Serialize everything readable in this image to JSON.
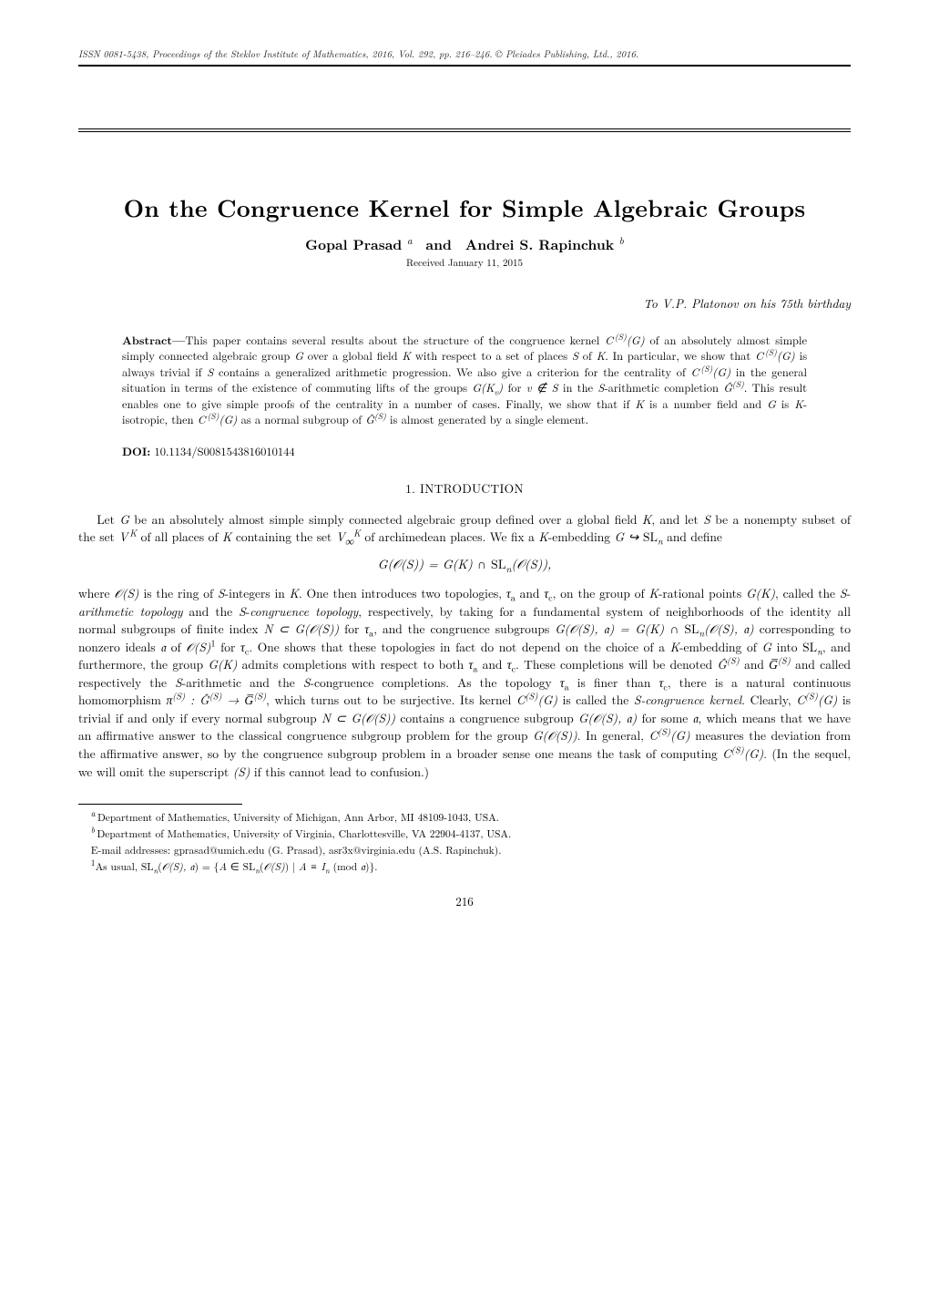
{
  "journal_header": "ISSN 0081-5438, Proceedings of the Steklov Institute of Mathematics, 2016, Vol. 292, pp. 216–246. © Pleiades Publishing, Ltd., 2016.",
  "title": "On the Congruence Kernel for Simple Algebraic Groups",
  "authors_html": "Gopal Prasad<sup>&nbsp;a</sup>&nbsp; and&nbsp; Andrei S. Rapinchuk<sup>&nbsp;b</sup>",
  "received": "Received January 11, 2015",
  "dedication": "To V.P. Platonov on his 75th birthday",
  "abstract_label": "Abstract—",
  "abstract_html": "This paper contains several results about the structure of the congruence kernel <span class=\"math\">C<sup>&thinsp;(S)</sup>(G)</span> of an absolutely almost simple simply connected algebraic group <span class=\"math\">G</span> over a global field <span class=\"math\">K</span> with respect to a set of places <span class=\"math\">S</span> of <span class=\"math\">K</span>. In particular, we show that <span class=\"math\">C<sup>&thinsp;(S)</sup>(G)</span> is always trivial if <span class=\"math\">S</span> contains a generalized arithmetic progression. We also give a criterion for the centrality of <span class=\"math\">C<sup>&thinsp;(S)</sup>(G)</span> in the general situation in terms of the existence of commuting lifts of the groups <span class=\"math\">G(K<sub>v</sub>)</span> for <span class=\"math\">v &notin; S</span> in the <span class=\"math\">S</span>-arithmetic completion <span class=\"math\">Ĝ<sup>(S)</sup></span>. This result enables one to give simple proofs of the centrality in a number of cases. Finally, we show that if <span class=\"math\">K</span> is a number field and <span class=\"math\">G</span> is <span class=\"math\">K</span>-isotropic, then <span class=\"math\">C<sup>&thinsp;(S)</sup>(G)</span> as a normal subgroup of <span class=\"math\">Ĝ<sup>(S)</sup></span> is almost generated by a single element.",
  "doi_label": "DOI:",
  "doi": "10.1134/S0081543816010144",
  "section1": "1. INTRODUCTION",
  "para1_html": "Let <span class=\"math\">G</span> be an absolutely almost simple simply connected algebraic group defined over a global field <span class=\"math\">K</span>, and let <span class=\"math\">S</span> be a nonempty subset of the set <span class=\"math\">V<sup>&thinsp;K</sup></span> of all places of <span class=\"math\">K</span> containing the set <span class=\"math\">V<sub>∞</sub><sup>K</sup></span> of archimedean places. We fix a <span class=\"math\">K</span>-embedding <span class=\"math\">G ↪ <span class=\"rm\">SL</span><sub>n</sub></span> and define",
  "display1_html": "<span class=\"math\">G(𝒪(S)) = G(K) ∩ <span class=\"rm\">SL</span><sub>n</sub>(𝒪(S)),</span>",
  "para2_html": "where <span class=\"math\">𝒪(S)</span> is the ring of <span class=\"math\">S</span>-integers in <span class=\"math\">K</span>. One then introduces two topologies, <span class=\"math\">τ</span><sub>a</sub> and <span class=\"math\">τ</span><sub>c</sub>, on the group of <span class=\"math\">K</span>-rational points <span class=\"math\">G(K)</span>, called the <span class=\"math\">S</span>-<span class=\"math\">arithmetic topology</span> and the <span class=\"math\">S</span>-<span class=\"math\">congruence topology</span>, respectively, by taking for a fundamental system of neighborhoods of the identity all normal subgroups of finite index <span class=\"math\">N ⊂ G(𝒪(S))</span> for <span class=\"math\">τ</span><sub>a</sub>, and the congruence subgroups <span class=\"math\">G(𝒪(S), 𝔞) = G(K) ∩ <span class=\"rm\">SL</span><sub>n</sub>(𝒪(S), 𝔞)</span> corresponding to nonzero ideals <span class=\"math\">𝔞</span> of <span class=\"math\">𝒪(S)</span><sup>1</sup> for <span class=\"math\">τ</span><sub>c</sub>. One shows that these topologies in fact do not depend on the choice of a <span class=\"math\">K</span>-embedding of <span class=\"math\">G</span> into <span class=\"rm\">SL</span><sub><span class=\"math\">n</span></sub>, and furthermore, the group <span class=\"math\">G(K)</span> admits completions with respect to both <span class=\"math\">τ</span><sub>a</sub> and <span class=\"math\">τ</span><sub>c</sub>. These completions will be denoted <span class=\"math\">Ĝ<sup>(S)</sup></span> and <span class=\"math\">G̅<sup>(S)</sup></span> and called respectively the <span class=\"math\">S</span>-arithmetic and the <span class=\"math\">S</span>-congruence completions. As the topology <span class=\"math\">τ</span><sub>a</sub> is finer than <span class=\"math\">τ</span><sub>c</sub>, there is a natural continuous homomorphism <span class=\"math\">π<sup>(S)</sup> : Ĝ<sup>(S)</sup> → G̅<sup>(S)</sup></span>, which turns out to be surjective. Its kernel <span class=\"math\">C<sup>(S)</sup>(G)</span> is called the <span class=\"math\">S-congruence kernel</span>. Clearly, <span class=\"math\">C<sup>(S)</sup>(G)</span> is trivial if and only if every normal subgroup <span class=\"math\">N ⊂ G(𝒪(S))</span> contains a congruence subgroup <span class=\"math\">G(𝒪(S), 𝔞)</span> for some <span class=\"math\">𝔞</span>, which means that we have an affirmative answer to the classical congruence subgroup problem for the group <span class=\"math\">G(𝒪(S))</span>. In general, <span class=\"math\">C<sup>(S)</sup>(G)</span> measures the deviation from the affirmative answer, so by the congruence subgroup problem in a broader sense one means the task of computing <span class=\"math\">C<sup>(S)</sup>(G)</span>. (In the sequel, we will omit the superscript <span class=\"math\">(S)</span> if this cannot lead to confusion.)",
  "footnotes": {
    "a": "Department of Mathematics, University of Michigan, Ann Arbor, MI 48109-1043, USA.",
    "b": "Department of Mathematics, University of Virginia, Charlottesville, VA 22904-4137, USA.",
    "emails": "E-mail addresses: gprasad@umich.edu (G. Prasad), asr3x@virginia.edu (A.S. Rapinchuk).",
    "f1_html": "As usual, <span class=\"rm\">SL</span><sub><span class=\"math\">n</span></sub>(<span class=\"math\">𝒪(S), 𝔞</span>) = {<span class=\"math\">A</span> ∈ <span class=\"rm\">SL</span><sub><span class=\"math\">n</span></sub>(<span class=\"math\">𝒪(S)</span>) | <span class=\"math\">A ≡ I<sub>n</sub></span> (mod <span class=\"math\">𝔞</span>)}."
  },
  "page_number": "216"
}
